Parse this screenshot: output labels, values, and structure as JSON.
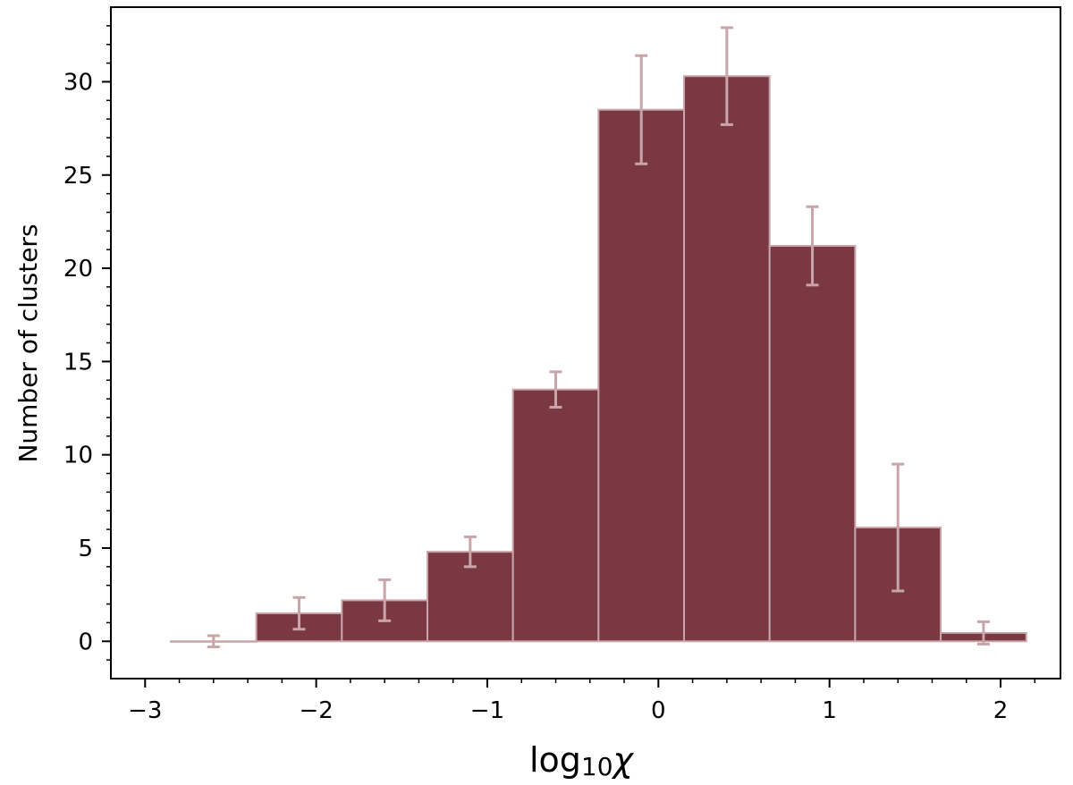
{
  "chart_data": {
    "type": "bar",
    "title": "",
    "xlabel": "log",
    "xlabel_sub": "10",
    "xlabel_var": "χ",
    "ylabel": "Number of clusters",
    "xlim": [
      -3.2,
      2.35
    ],
    "ylim": [
      -2,
      34
    ],
    "xticks": [
      -3,
      -2,
      -1,
      0,
      1,
      2
    ],
    "xtick_labels": [
      "−3",
      "−2",
      "−1",
      "0",
      "1",
      "2"
    ],
    "yticks": [
      0,
      5,
      10,
      15,
      20,
      25,
      30
    ],
    "ytick_labels": [
      "0",
      "5",
      "10",
      "15",
      "20",
      "25",
      "30"
    ],
    "bin_edges": [
      -2.85,
      -2.35,
      -1.85,
      -1.35,
      -0.85,
      -0.35,
      0.15,
      0.65,
      1.15,
      1.65,
      2.15
    ],
    "values": [
      0.0,
      1.5,
      2.2,
      4.8,
      13.5,
      28.5,
      30.3,
      21.2,
      6.1,
      0.45
    ],
    "errors": [
      0.3,
      0.85,
      1.1,
      0.8,
      0.95,
      2.9,
      2.6,
      2.1,
      3.4,
      0.6
    ],
    "grid": false,
    "bar_color": "#7a3843",
    "edge_color": "#c9a4a9",
    "error_color": "#c9a4a9"
  }
}
